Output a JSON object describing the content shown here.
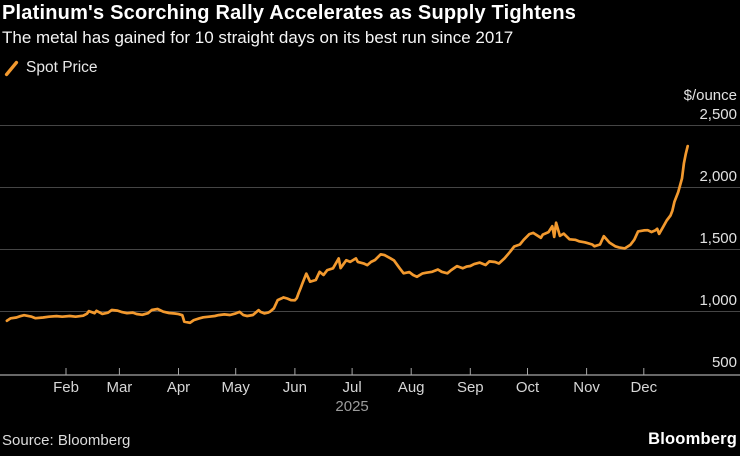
{
  "header": {
    "title": "Platinum's Scorching Rally Accelerates as Supply Tightens",
    "subtitle": "The metal has gained for 10 straight days on its best run since 2017"
  },
  "legend": {
    "items": [
      {
        "label": "Spot Price",
        "marker": "slash-icon",
        "color": "#F2992E"
      }
    ]
  },
  "y_axis": {
    "unit_label": "$/ounce",
    "ticks": [
      {
        "value": 2500,
        "label": "2,500"
      },
      {
        "value": 2000,
        "label": "2,000"
      },
      {
        "value": 1500,
        "label": "1,500"
      },
      {
        "value": 1000,
        "label": "1,000"
      },
      {
        "value": 500,
        "label": "500"
      }
    ]
  },
  "x_axis": {
    "months": [
      "Feb",
      "Mar",
      "Apr",
      "May",
      "Jun",
      "Jul",
      "Aug",
      "Sep",
      "Oct",
      "Nov",
      "Dec"
    ],
    "year_label": "2025",
    "year_under_month": "Jul"
  },
  "footer": {
    "source": "Source: Bloomberg",
    "brand": "Bloomberg"
  },
  "colors": {
    "background": "#000000",
    "line": "#F2992E",
    "grid": "#454545",
    "axis": "#A6A6A6",
    "title_text": "#FFFFFF",
    "month_text": "#D6D6D6",
    "year_text": "#9C9C9C"
  },
  "chart_data": {
    "type": "line",
    "title": "Platinum's Scorching Rally Accelerates as Supply Tightens",
    "subtitle": "The metal has gained for 10 straight days on its best run since 2017",
    "ylabel": "$/ounce",
    "xlabel": "2025",
    "ylim": [
      450,
      2600
    ],
    "y_ticks": [
      500,
      1000,
      1500,
      2000,
      2500
    ],
    "x_tick_labels": [
      "Feb",
      "Mar",
      "Apr",
      "May",
      "Jun",
      "Jul",
      "Aug",
      "Sep",
      "Oct",
      "Nov",
      "Dec"
    ],
    "grid": "horizontal",
    "legend_position": "top-left",
    "series": [
      {
        "name": "Spot Price",
        "color": "#F2992E",
        "x_format": "MM-DD of 2025",
        "points": [
          [
            "01-01",
            925
          ],
          [
            "01-03",
            945
          ],
          [
            "01-06",
            952
          ],
          [
            "01-08",
            962
          ],
          [
            "01-10",
            970
          ],
          [
            "01-14",
            958
          ],
          [
            "01-16",
            946
          ],
          [
            "01-20",
            952
          ],
          [
            "01-23",
            958
          ],
          [
            "01-27",
            963
          ],
          [
            "01-30",
            958
          ],
          [
            "02-03",
            964
          ],
          [
            "02-06",
            958
          ],
          [
            "02-10",
            966
          ],
          [
            "02-12",
            982
          ],
          [
            "02-13",
            1003
          ],
          [
            "02-16",
            986
          ],
          [
            "02-17",
            1006
          ],
          [
            "02-20",
            981
          ],
          [
            "02-23",
            990
          ],
          [
            "02-25",
            1012
          ],
          [
            "02-28",
            1007
          ],
          [
            "03-02",
            997
          ],
          [
            "03-05",
            986
          ],
          [
            "03-08",
            991
          ],
          [
            "03-10",
            980
          ],
          [
            "03-13",
            973
          ],
          [
            "03-16",
            986
          ],
          [
            "03-18",
            1012
          ],
          [
            "03-21",
            1020
          ],
          [
            "03-24",
            998
          ],
          [
            "03-27",
            988
          ],
          [
            "03-30",
            984
          ],
          [
            "04-01",
            979
          ],
          [
            "04-03",
            970
          ],
          [
            "04-04",
            918
          ],
          [
            "04-07",
            909
          ],
          [
            "04-09",
            931
          ],
          [
            "04-12",
            945
          ],
          [
            "04-14",
            953
          ],
          [
            "04-17",
            958
          ],
          [
            "04-20",
            964
          ],
          [
            "04-22",
            971
          ],
          [
            "04-25",
            977
          ],
          [
            "04-28",
            972
          ],
          [
            "05-01",
            985
          ],
          [
            "05-03",
            997
          ],
          [
            "05-05",
            971
          ],
          [
            "05-07",
            964
          ],
          [
            "05-10",
            972
          ],
          [
            "05-13",
            1011
          ],
          [
            "05-14",
            997
          ],
          [
            "05-16",
            985
          ],
          [
            "05-18",
            991
          ],
          [
            "05-19",
            999
          ],
          [
            "05-21",
            1026
          ],
          [
            "05-23",
            1092
          ],
          [
            "05-25",
            1106
          ],
          [
            "05-26",
            1114
          ],
          [
            "05-28",
            1105
          ],
          [
            "05-30",
            1092
          ],
          [
            "06-01",
            1090
          ],
          [
            "06-02",
            1108
          ],
          [
            "06-03",
            1150
          ],
          [
            "06-04",
            1188
          ],
          [
            "06-05",
            1228
          ],
          [
            "06-07",
            1306
          ],
          [
            "06-09",
            1240
          ],
          [
            "06-12",
            1254
          ],
          [
            "06-14",
            1320
          ],
          [
            "06-16",
            1294
          ],
          [
            "06-18",
            1334
          ],
          [
            "06-21",
            1348
          ],
          [
            "06-24",
            1428
          ],
          [
            "06-25",
            1350
          ],
          [
            "06-28",
            1414
          ],
          [
            "06-30",
            1400
          ],
          [
            "07-03",
            1428
          ],
          [
            "07-04",
            1400
          ],
          [
            "07-07",
            1388
          ],
          [
            "07-09",
            1374
          ],
          [
            "07-11",
            1400
          ],
          [
            "07-13",
            1415
          ],
          [
            "07-16",
            1461
          ],
          [
            "07-18",
            1455
          ],
          [
            "07-21",
            1430
          ],
          [
            "07-23",
            1412
          ],
          [
            "07-26",
            1348
          ],
          [
            "07-28",
            1308
          ],
          [
            "07-31",
            1318
          ],
          [
            "08-02",
            1294
          ],
          [
            "08-04",
            1280
          ],
          [
            "08-07",
            1307
          ],
          [
            "08-09",
            1313
          ],
          [
            "08-12",
            1320
          ],
          [
            "08-15",
            1339
          ],
          [
            "08-17",
            1320
          ],
          [
            "08-20",
            1308
          ],
          [
            "08-22",
            1334
          ],
          [
            "08-25",
            1366
          ],
          [
            "08-28",
            1348
          ],
          [
            "08-30",
            1362
          ],
          [
            "09-01",
            1367
          ],
          [
            "09-03",
            1382
          ],
          [
            "09-06",
            1394
          ],
          [
            "09-09",
            1375
          ],
          [
            "09-11",
            1404
          ],
          [
            "09-14",
            1399
          ],
          [
            "09-16",
            1387
          ],
          [
            "09-19",
            1429
          ],
          [
            "09-22",
            1484
          ],
          [
            "09-24",
            1524
          ],
          [
            "09-27",
            1540
          ],
          [
            "09-29",
            1578
          ],
          [
            "10-02",
            1624
          ],
          [
            "10-04",
            1634
          ],
          [
            "10-08",
            1594
          ],
          [
            "10-09",
            1620
          ],
          [
            "10-12",
            1640
          ],
          [
            "10-14",
            1688
          ],
          [
            "10-15",
            1602
          ],
          [
            "10-16",
            1716
          ],
          [
            "10-18",
            1610
          ],
          [
            "10-20",
            1628
          ],
          [
            "10-23",
            1582
          ],
          [
            "10-26",
            1578
          ],
          [
            "10-28",
            1566
          ],
          [
            "10-31",
            1558
          ],
          [
            "11-01",
            1554
          ],
          [
            "11-04",
            1540
          ],
          [
            "11-05",
            1526
          ],
          [
            "11-08",
            1540
          ],
          [
            "11-10",
            1607
          ],
          [
            "11-13",
            1556
          ],
          [
            "11-16",
            1526
          ],
          [
            "11-18",
            1517
          ],
          [
            "11-21",
            1509
          ],
          [
            "11-24",
            1539
          ],
          [
            "11-26",
            1579
          ],
          [
            "11-28",
            1646
          ],
          [
            "12-01",
            1654
          ],
          [
            "12-03",
            1656
          ],
          [
            "12-05",
            1641
          ],
          [
            "12-07",
            1654
          ],
          [
            "12-08",
            1667
          ],
          [
            "12-09",
            1626
          ],
          [
            "12-11",
            1679
          ],
          [
            "12-13",
            1734
          ],
          [
            "12-15",
            1774
          ],
          [
            "12-16",
            1814
          ],
          [
            "12-17",
            1884
          ],
          [
            "12-19",
            1963
          ],
          [
            "12-21",
            2073
          ],
          [
            "12-22",
            2194
          ],
          [
            "12-23",
            2272
          ],
          [
            "12-24",
            2334
          ]
        ]
      }
    ]
  }
}
